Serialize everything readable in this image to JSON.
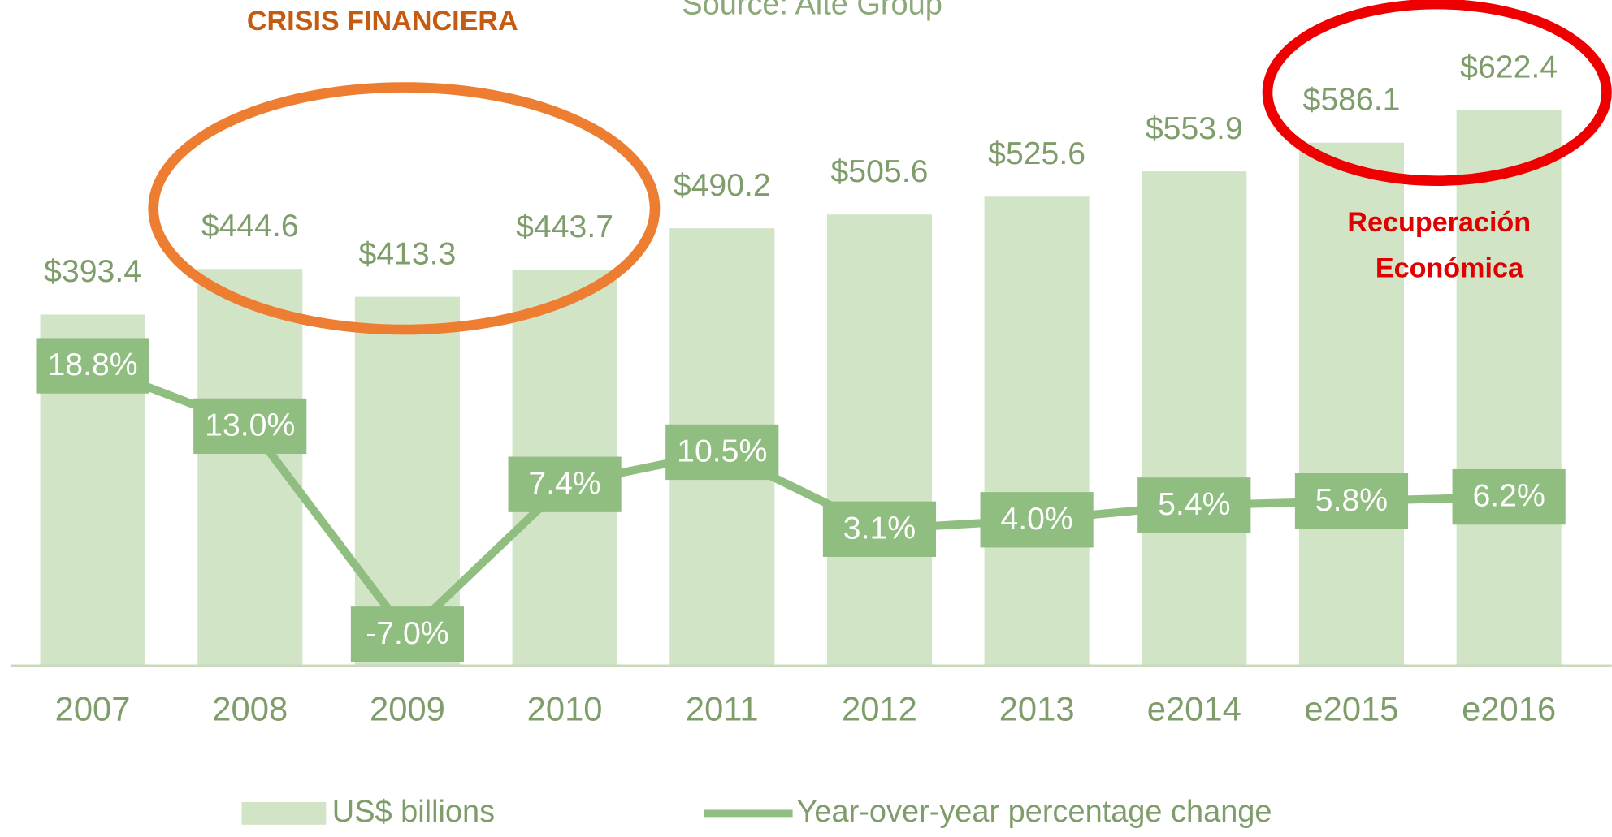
{
  "chart_data": {
    "type": "bar-line",
    "title": "Source: Alte Group",
    "annotations": [
      "CRISIS FINANCIERA",
      "Recuperación",
      "Económica"
    ],
    "categories": [
      "2007",
      "2008",
      "2009",
      "2010",
      "2011",
      "2012",
      "2013",
      "e2014",
      "e2015",
      "e2016"
    ],
    "series": [
      {
        "name": "US$ billions",
        "type": "bar",
        "color": "#d2e4c6",
        "values": [
          393.4,
          444.6,
          413.3,
          443.7,
          490.2,
          505.6,
          525.6,
          553.9,
          586.1,
          622.4
        ],
        "value_labels": [
          "$393.4",
          "$444.6",
          "$413.3",
          "$443.7",
          "$490.2",
          "$505.6",
          "$525.6",
          "$553.9",
          "$586.1",
          "$622.4"
        ]
      },
      {
        "name": "Year-over-year percentage change",
        "type": "line",
        "axis": "y2",
        "color": "#90bd80",
        "values": [
          18.8,
          13.0,
          -7.0,
          7.4,
          10.5,
          3.1,
          4.0,
          5.4,
          5.8,
          6.2
        ],
        "value_labels": [
          "18.8%",
          "13.0%",
          "-7.0%",
          "7.4%",
          "10.5%",
          "3.1%",
          "4.0%",
          "5.4%",
          "5.8%",
          "6.2%"
        ]
      }
    ],
    "ylim": [
      0,
      700
    ],
    "y2lim": [
      -10,
      50
    ],
    "legend": "bottom"
  }
}
